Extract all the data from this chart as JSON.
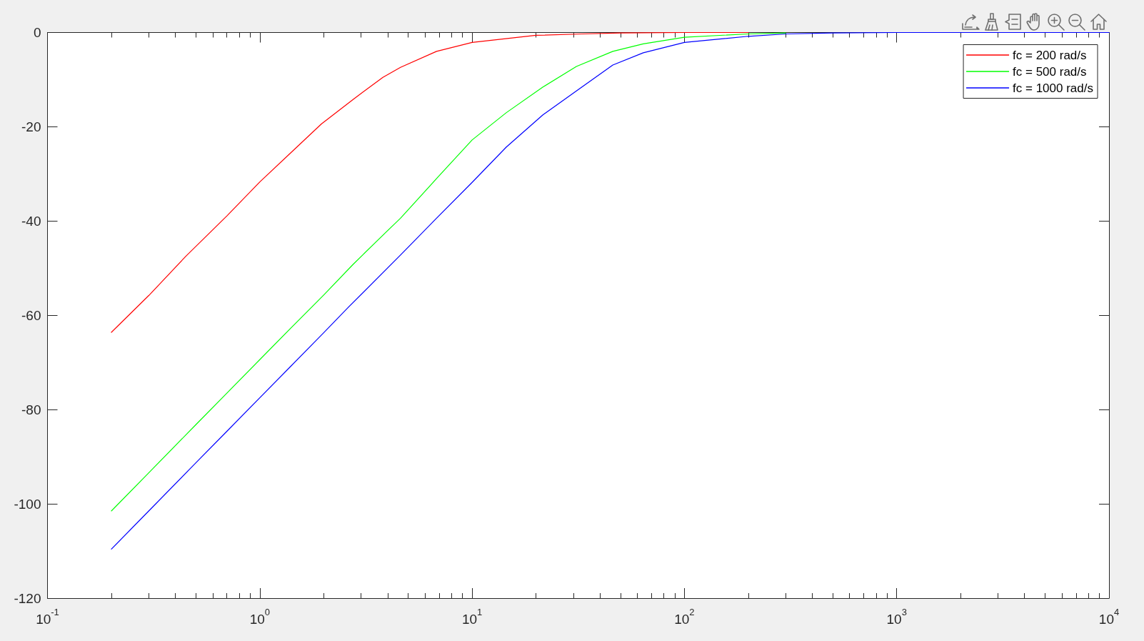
{
  "chart_data": {
    "type": "line",
    "series": [
      {
        "name": "fc = 200 rad/s",
        "color": "#ff0000",
        "x": [
          0.2,
          0.3,
          0.45,
          0.7,
          1,
          1.4,
          1.95,
          2.75,
          3.8,
          4.6,
          6.8,
          10,
          20,
          33,
          50,
          100,
          200
        ],
        "values": [
          -63.6,
          -55.8,
          -47.4,
          -38.9,
          -31.7,
          -25.5,
          -19.4,
          -14.2,
          -9.5,
          -7.4,
          -4.0,
          -2.1,
          -0.6,
          -0.3,
          -0.1,
          0,
          0
        ]
      },
      {
        "name": "fc = 500 rad/s",
        "color": "#00ff00",
        "x": [
          0.2,
          0.3,
          0.5,
          0.7,
          1,
          1.4,
          2,
          2.75,
          3.9,
          4.6,
          6.8,
          10,
          14.5,
          21.5,
          31,
          46,
          64,
          100,
          200,
          300
        ],
        "values": [
          -101.5,
          -93.4,
          -83.2,
          -76.5,
          -69.4,
          -62.7,
          -55.7,
          -49.2,
          -42.5,
          -39.4,
          -31.0,
          -22.8,
          -17.0,
          -11.6,
          -7.2,
          -4.0,
          -2.4,
          -1.0,
          -0.3,
          -0.1
        ]
      },
      {
        "name": "fc = 1000 rad/s",
        "color": "#0000ff",
        "x": [
          0.2,
          0.3,
          0.5,
          0.7,
          1,
          1.4,
          2,
          2.6,
          4.6,
          6.8,
          10,
          14.5,
          21.5,
          31,
          46,
          64,
          100,
          200,
          300,
          500,
          1000,
          10000
        ],
        "values": [
          -109.6,
          -101.5,
          -91.3,
          -84.6,
          -77.5,
          -70.8,
          -63.7,
          -58.4,
          -47.2,
          -39.4,
          -31.8,
          -24.3,
          -17.5,
          -12.4,
          -6.9,
          -4.3,
          -2.1,
          -0.8,
          -0.3,
          -0.1,
          0,
          0
        ]
      }
    ],
    "xlim": [
      0.1,
      10000
    ],
    "xticks": [
      {
        "value": 0.1,
        "label": "10$^{-1}$"
      },
      {
        "value": 0.2,
        "label": null
      },
      {
        "value": 0.3,
        "label": null
      },
      {
        "value": 0.4,
        "label": null
      },
      {
        "value": 0.5,
        "label": null
      },
      {
        "value": 0.6,
        "label": null
      },
      {
        "value": 0.7,
        "label": null
      },
      {
        "value": 0.8,
        "label": null
      },
      {
        "value": 0.9,
        "label": null
      },
      {
        "value": 1,
        "label": "10$^{0}$"
      },
      {
        "value": 2,
        "label": null
      },
      {
        "value": 3,
        "label": null
      },
      {
        "value": 4,
        "label": null
      },
      {
        "value": 5,
        "label": null
      },
      {
        "value": 6,
        "label": null
      },
      {
        "value": 7,
        "label": null
      },
      {
        "value": 8,
        "label": null
      },
      {
        "value": 9,
        "label": null
      },
      {
        "value": 10,
        "label": "10$^{1}$"
      },
      {
        "value": 20,
        "label": null
      },
      {
        "value": 30,
        "label": null
      },
      {
        "value": 40,
        "label": null
      },
      {
        "value": 50,
        "label": null
      },
      {
        "value": 60,
        "label": null
      },
      {
        "value": 70,
        "label": null
      },
      {
        "value": 80,
        "label": null
      },
      {
        "value": 90,
        "label": null
      },
      {
        "value": 100,
        "label": "10$^{2}$"
      },
      {
        "value": 200,
        "label": null
      },
      {
        "value": 300,
        "label": null
      },
      {
        "value": 400,
        "label": null
      },
      {
        "value": 500,
        "label": null
      },
      {
        "value": 600,
        "label": null
      },
      {
        "value": 700,
        "label": null
      },
      {
        "value": 800,
        "label": null
      },
      {
        "value": 900,
        "label": null
      },
      {
        "value": 1000,
        "label": "10$^{3}$"
      },
      {
        "value": 2000,
        "label": null
      },
      {
        "value": 3000,
        "label": null
      },
      {
        "value": 4000,
        "label": null
      },
      {
        "value": 5000,
        "label": null
      },
      {
        "value": 6000,
        "label": null
      },
      {
        "value": 7000,
        "label": null
      },
      {
        "value": 8000,
        "label": null
      },
      {
        "value": 9000,
        "label": null
      },
      {
        "value": 10000,
        "label": "10$^{4}$"
      }
    ],
    "ylim": [
      -120,
      0
    ],
    "yticks": [
      -120,
      -100,
      -80,
      -60,
      -40,
      -20,
      0
    ],
    "log": "x",
    "grid": false,
    "legend": "top right",
    "marker": "none",
    "line_style": "solid"
  }
}
